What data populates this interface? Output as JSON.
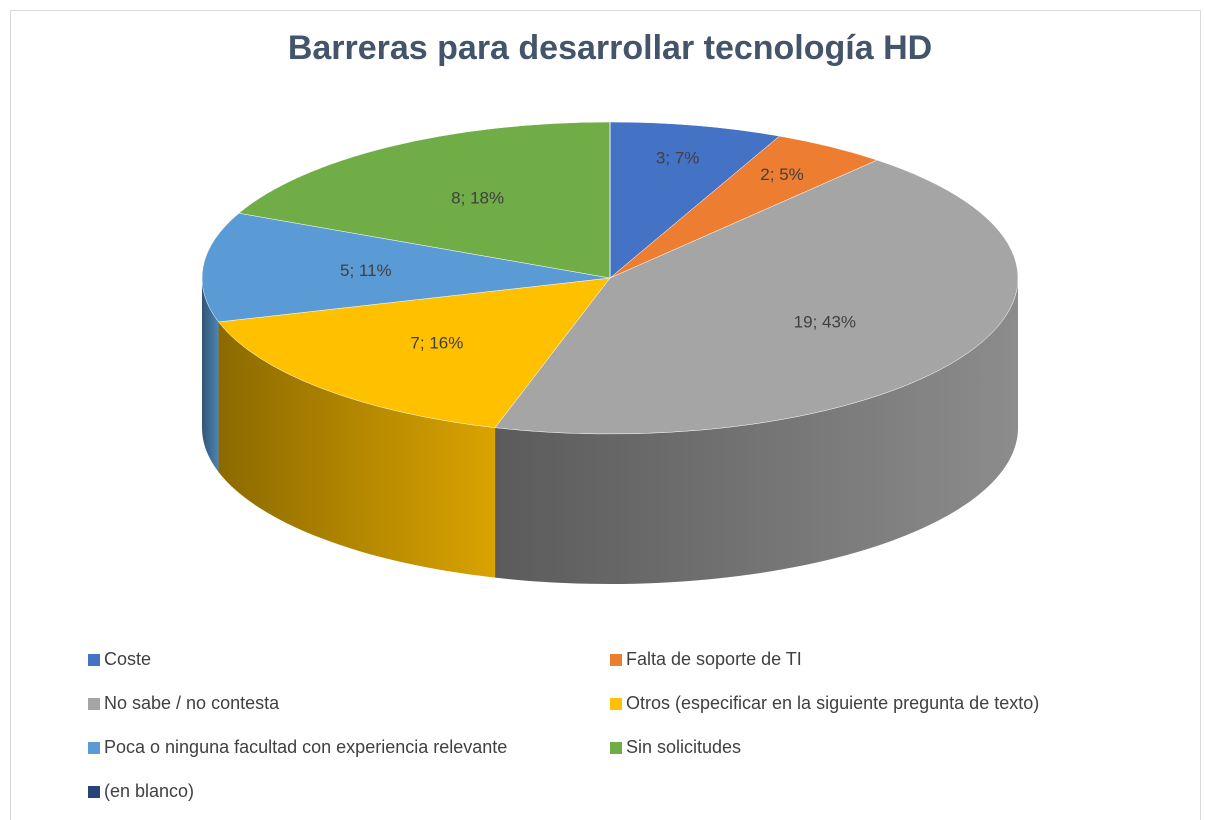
{
  "chart_data": {
    "type": "pie3d",
    "title": "Barreras para desarrollar tecnología HD",
    "categories": [
      "Coste",
      "Falta de soporte de TI",
      "No sabe / no contesta",
      "Otros (especificar en la siguiente pregunta de texto)",
      "Poca o ninguna facultad con experiencia relevante",
      "Sin solicitudes",
      "(en blanco)"
    ],
    "values": [
      3,
      2,
      19,
      7,
      5,
      8,
      0
    ],
    "value_labels": [
      "3; 7%",
      "2; 5%",
      "19; 43%",
      "7; 16%",
      "5; 11%",
      "8; 18%",
      null
    ],
    "colors": [
      "#4472c4",
      "#ed7d31",
      "#a5a5a5",
      "#ffc000",
      "#5b9bd5",
      "#70ad47",
      "#264478"
    ],
    "legend": "bottom"
  }
}
